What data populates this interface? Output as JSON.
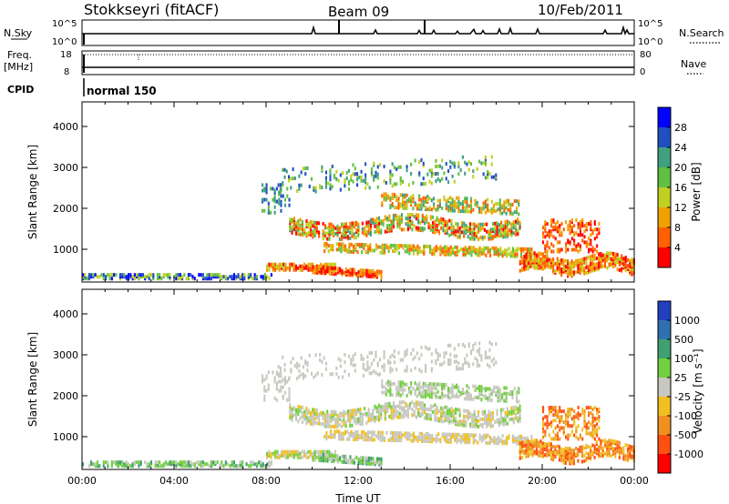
{
  "header": {
    "station": "Stokkseyri (fitACF)",
    "beam": "Beam 09",
    "date": "10/Feb/2011"
  },
  "top_panels": {
    "nsky_label": "N.Sky",
    "nsky_ticks": [
      "10^5",
      "10^0"
    ],
    "nsearch_label": "N.Search",
    "nsearch_ticks": [
      "10^5",
      "10^0"
    ],
    "freq_label": "Freq.",
    "freq_unit": "[MHz]",
    "freq_ticks": [
      "18",
      "8"
    ],
    "nave_label": "Nave",
    "nave_ticks": [
      "80",
      "0"
    ],
    "cpid_label": "CPID",
    "cpid_value": "normal 150"
  },
  "chart_data": [
    {
      "type": "heatmap",
      "name": "power",
      "ylabel": "Slant Range [km]",
      "xlabel": "",
      "x_ticks": [
        "00:00",
        "04:00",
        "08:00",
        "12:00",
        "16:00",
        "20:00",
        "00:00"
      ],
      "y_ticks": [
        1000,
        2000,
        3000,
        4000
      ],
      "ylim": [
        200,
        4600
      ],
      "xlim_hours": [
        0,
        24
      ],
      "colorbar": {
        "label": "Power [dB]",
        "ticks": [
          "28",
          "24",
          "20",
          "16",
          "12",
          "8",
          "4"
        ],
        "colors": [
          "#0000ff",
          "#2050c0",
          "#40a080",
          "#60c040",
          "#c0d020",
          "#f0a000",
          "#ff6000",
          "#ff0000"
        ]
      }
    },
    {
      "type": "heatmap",
      "name": "velocity",
      "ylabel": "Slant Range [km]",
      "xlabel": "Time UT",
      "x_ticks": [
        "00:00",
        "04:00",
        "08:00",
        "12:00",
        "16:00",
        "20:00",
        "00:00"
      ],
      "y_ticks": [
        1000,
        2000,
        3000,
        4000
      ],
      "ylim": [
        200,
        4600
      ],
      "xlim_hours": [
        0,
        24
      ],
      "colorbar": {
        "label": "Velocity [m s⁻¹]",
        "ticks": [
          "1000",
          "500",
          "100",
          "25",
          "-25",
          "-100",
          "-500",
          "-1000"
        ],
        "colors": [
          "#2040c0",
          "#3070b0",
          "#40a070",
          "#70d040",
          "#c8c8c0",
          "#f0c020",
          "#f09020",
          "#ff5010",
          "#ff0000"
        ]
      }
    }
  ]
}
